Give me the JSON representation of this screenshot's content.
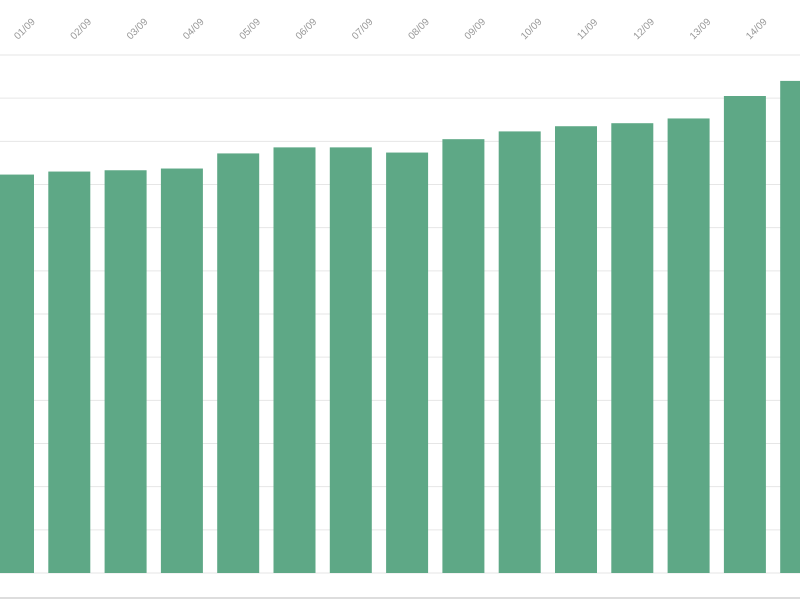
{
  "chart_data": {
    "type": "bar",
    "categories": [
      "01/09",
      "02/09",
      "03/09",
      "04/09",
      "05/09",
      "06/09",
      "07/09",
      "08/09",
      "09/09",
      "10/09",
      "11/09",
      "12/09",
      "13/09",
      "14/09",
      null
    ],
    "values": [
      9.23,
      9.3,
      9.33,
      9.37,
      9.72,
      9.86,
      9.86,
      9.74,
      10.05,
      10.23,
      10.35,
      10.42,
      10.53,
      11.05,
      11.4
    ],
    "color": "#5ea886",
    "ylim": [
      0,
      12
    ],
    "yticks": [
      0,
      1,
      2,
      3,
      4,
      5,
      6,
      7,
      8,
      9,
      10,
      11,
      12
    ],
    "grid": true
  }
}
